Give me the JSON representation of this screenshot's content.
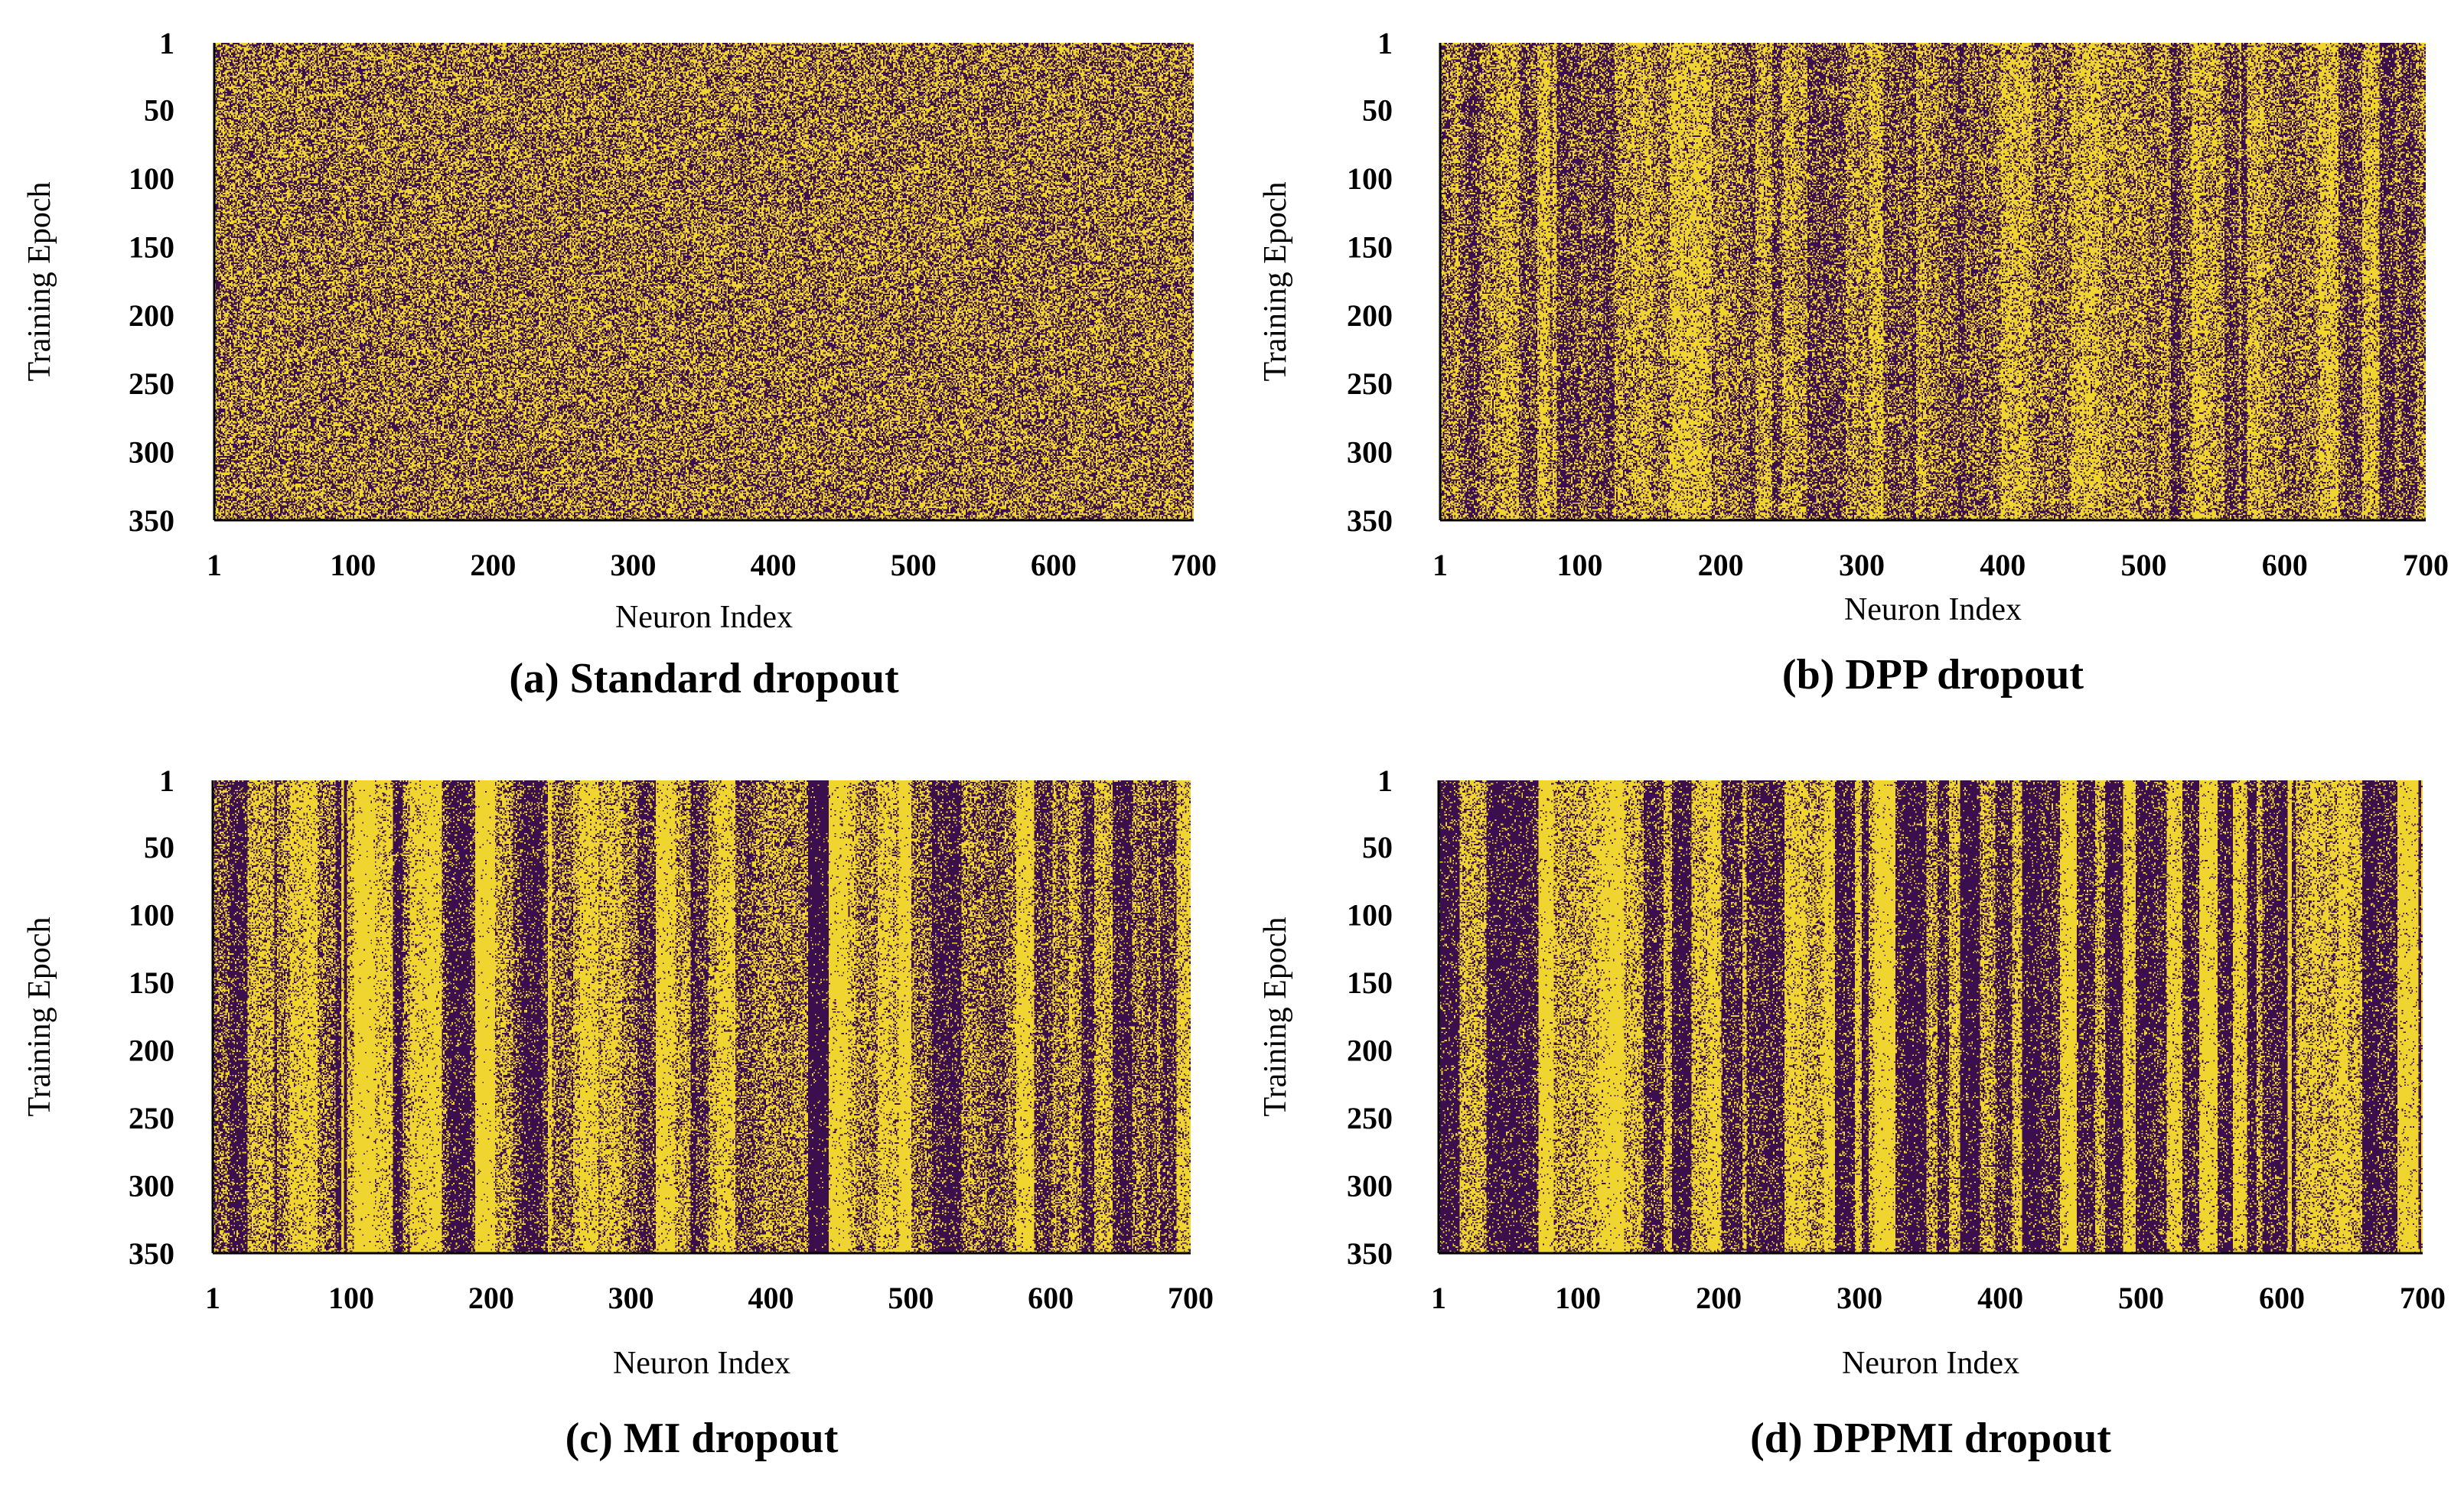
{
  "chart_data": [
    {
      "type": "heatmap",
      "caption": "(a) Standard dropout",
      "pattern": "random",
      "xlabel": "Neuron Index",
      "ylabel": "Training Epoch",
      "xticks": [
        "1",
        "100",
        "200",
        "300",
        "400",
        "500",
        "600",
        "700"
      ],
      "yticks": [
        "1",
        "50",
        "100",
        "150",
        "200",
        "250",
        "300",
        "350"
      ],
      "xlim": [
        1,
        700
      ],
      "ylim": [
        1,
        350
      ],
      "colors": {
        "dropped": "#3b0f4d",
        "kept": "#f0d531"
      }
    },
    {
      "type": "heatmap",
      "caption": "(b) DPP dropout",
      "pattern": "weak-columns",
      "xlabel": "Neuron Index",
      "ylabel": "Training Epoch",
      "xticks": [
        "1",
        "100",
        "200",
        "300",
        "400",
        "500",
        "600",
        "700"
      ],
      "yticks": [
        "1",
        "50",
        "100",
        "150",
        "200",
        "250",
        "300",
        "350"
      ],
      "xlim": [
        1,
        700
      ],
      "ylim": [
        1,
        350
      ],
      "colors": {
        "dropped": "#3b0f4d",
        "kept": "#f0d531"
      }
    },
    {
      "type": "heatmap",
      "caption": "(c) MI dropout",
      "pattern": "columns",
      "xlabel": "Neuron Index",
      "ylabel": "Training Epoch",
      "xticks": [
        "1",
        "100",
        "200",
        "300",
        "400",
        "500",
        "600",
        "700"
      ],
      "yticks": [
        "1",
        "50",
        "100",
        "150",
        "200",
        "250",
        "300",
        "350"
      ],
      "xlim": [
        1,
        700
      ],
      "ylim": [
        1,
        350
      ],
      "colors": {
        "dropped": "#3b0f4d",
        "kept": "#f0d531"
      }
    },
    {
      "type": "heatmap",
      "caption": "(d) DPPMI dropout",
      "pattern": "strong-columns",
      "xlabel": "Neuron Index",
      "ylabel": "Training Epoch",
      "xticks": [
        "1",
        "100",
        "200",
        "300",
        "400",
        "500",
        "600",
        "700"
      ],
      "yticks": [
        "1",
        "50",
        "100",
        "150",
        "200",
        "250",
        "300",
        "350"
      ],
      "xlim": [
        1,
        700
      ],
      "ylim": [
        1,
        350
      ],
      "colors": {
        "dropped": "#3b0f4d",
        "kept": "#f0d531"
      }
    }
  ]
}
